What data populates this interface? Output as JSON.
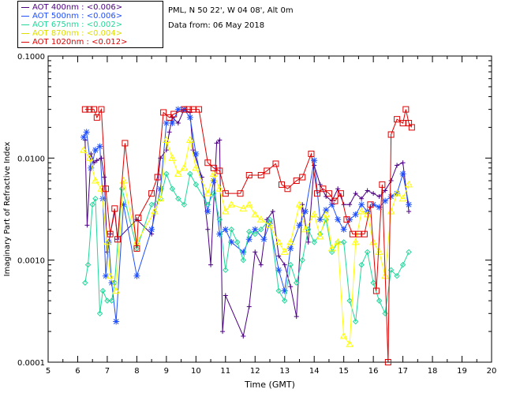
{
  "header": {
    "site": "PML, N 50 22', W 04 08', Alt 0m",
    "date": "Data from: 06 May 2018"
  },
  "colors": {
    "s400": "#4b0082",
    "s500": "#1f4fff",
    "s675": "#22d79a",
    "s870": "#ffff00",
    "s1020": "#dd0000"
  },
  "legend": [
    {
      "label": "AOT  400nm : <0.006>",
      "color": "#4b0082"
    },
    {
      "label": "AOT  500nm : <0.006>",
      "color": "#1f4fff"
    },
    {
      "label": "AOT  675nm : <0.002>",
      "color": "#22d79a"
    },
    {
      "label": "AOT  870nm : <0.004>",
      "color": "#dddd00"
    },
    {
      "label": "AOT 1020nm : <0.012>",
      "color": "#dd0000"
    }
  ],
  "chart_data": {
    "type": "scatter",
    "title": "",
    "xlabel": "Time (GMT)",
    "ylabel": "Imaginary Part of Refractive Index",
    "xlim": [
      5,
      20
    ],
    "ylim": [
      0.0001,
      0.1
    ],
    "yscale": "log",
    "xticks": [
      5,
      6,
      7,
      8,
      9,
      10,
      11,
      12,
      13,
      14,
      15,
      16,
      17,
      18,
      19,
      20
    ],
    "yticks": [
      {
        "value": 0.0001,
        "label": "0.0001"
      },
      {
        "value": 0.001,
        "label": "0.0010"
      },
      {
        "value": 0.01,
        "label": "0.0100"
      },
      {
        "value": 0.1,
        "label": "0.1000"
      }
    ],
    "series": [
      {
        "name": "AOT 400nm",
        "marker": "plus",
        "color": "#4b0082",
        "points": [
          [
            6.25,
            0.015
          ],
          [
            6.32,
            0.0022
          ],
          [
            6.45,
            0.011
          ],
          [
            6.55,
            0.009
          ],
          [
            6.65,
            0.0095
          ],
          [
            6.8,
            0.01
          ],
          [
            6.9,
            0.0065
          ],
          [
            7.0,
            0.0012
          ],
          [
            7.1,
            0.0018
          ],
          [
            7.25,
            0.003
          ],
          [
            7.35,
            0.0016
          ],
          [
            8.0,
            0.0025
          ],
          [
            8.5,
            0.0018
          ],
          [
            8.8,
            0.01
          ],
          [
            9.0,
            0.012
          ],
          [
            9.1,
            0.018
          ],
          [
            9.2,
            0.025
          ],
          [
            9.4,
            0.022
          ],
          [
            9.6,
            0.03
          ],
          [
            9.8,
            0.028
          ],
          [
            9.9,
            0.012
          ],
          [
            10.2,
            0.0065
          ],
          [
            10.4,
            0.002
          ],
          [
            10.5,
            0.0009
          ],
          [
            10.7,
            0.014
          ],
          [
            10.8,
            0.015
          ],
          [
            10.9,
            0.0002
          ],
          [
            11.0,
            0.00045
          ],
          [
            11.6,
            0.00018
          ],
          [
            11.8,
            0.00035
          ],
          [
            12.0,
            0.0012
          ],
          [
            12.2,
            0.0009
          ],
          [
            12.4,
            0.0025
          ],
          [
            12.6,
            0.003
          ],
          [
            12.8,
            0.0011
          ],
          [
            13.0,
            0.0009
          ],
          [
            13.2,
            0.00055
          ],
          [
            13.4,
            0.00028
          ],
          [
            13.6,
            0.0035
          ],
          [
            13.8,
            0.0015
          ],
          [
            14.0,
            0.0085
          ],
          [
            14.2,
            0.0055
          ],
          [
            14.4,
            0.0042
          ],
          [
            14.6,
            0.0038
          ],
          [
            14.8,
            0.005
          ],
          [
            15.0,
            0.0035
          ],
          [
            15.2,
            0.0035
          ],
          [
            15.4,
            0.0045
          ],
          [
            15.6,
            0.004
          ],
          [
            15.8,
            0.0048
          ],
          [
            16.0,
            0.0045
          ],
          [
            16.2,
            0.0042
          ],
          [
            16.4,
            0.0048
          ],
          [
            16.6,
            0.006
          ],
          [
            16.8,
            0.0085
          ],
          [
            17.0,
            0.009
          ],
          [
            17.2,
            0.003
          ]
        ]
      },
      {
        "name": "AOT 500nm",
        "marker": "star",
        "color": "#1f4fff",
        "points": [
          [
            6.2,
            0.016
          ],
          [
            6.3,
            0.018
          ],
          [
            6.45,
            0.008
          ],
          [
            6.6,
            0.012
          ],
          [
            6.75,
            0.013
          ],
          [
            6.85,
            0.004
          ],
          [
            6.95,
            0.0007
          ],
          [
            7.05,
            0.0015
          ],
          [
            7.15,
            0.0006
          ],
          [
            7.3,
            0.00025
          ],
          [
            7.55,
            0.0035
          ],
          [
            8.0,
            0.0007
          ],
          [
            8.5,
            0.002
          ],
          [
            8.8,
            0.005
          ],
          [
            9.0,
            0.022
          ],
          [
            9.2,
            0.022
          ],
          [
            9.4,
            0.03
          ],
          [
            9.6,
            0.03
          ],
          [
            9.8,
            0.025
          ],
          [
            10.0,
            0.011
          ],
          [
            10.4,
            0.003
          ],
          [
            10.6,
            0.006
          ],
          [
            10.8,
            0.0018
          ],
          [
            11.0,
            0.002
          ],
          [
            11.2,
            0.0015
          ],
          [
            11.6,
            0.0012
          ],
          [
            11.8,
            0.0016
          ],
          [
            12.0,
            0.002
          ],
          [
            12.3,
            0.0016
          ],
          [
            12.5,
            0.0023
          ],
          [
            12.8,
            0.0008
          ],
          [
            13.0,
            0.0005
          ],
          [
            13.2,
            0.0013
          ],
          [
            13.5,
            0.0022
          ],
          [
            13.7,
            0.003
          ],
          [
            14.0,
            0.0095
          ],
          [
            14.2,
            0.0025
          ],
          [
            14.4,
            0.0031
          ],
          [
            14.6,
            0.0035
          ],
          [
            14.8,
            0.0025
          ],
          [
            15.0,
            0.002
          ],
          [
            15.2,
            0.0025
          ],
          [
            15.4,
            0.0028
          ],
          [
            15.6,
            0.0035
          ],
          [
            15.8,
            0.003
          ],
          [
            16.0,
            0.0035
          ],
          [
            16.2,
            0.0033
          ],
          [
            16.4,
            0.0038
          ],
          [
            16.6,
            0.0042
          ],
          [
            16.8,
            0.0045
          ],
          [
            17.0,
            0.007
          ],
          [
            17.2,
            0.0035
          ]
        ]
      },
      {
        "name": "AOT 675nm",
        "marker": "diamond",
        "color": "#22d79a",
        "points": [
          [
            6.25,
            0.0006
          ],
          [
            6.35,
            0.0009
          ],
          [
            6.5,
            0.0035
          ],
          [
            6.6,
            0.004
          ],
          [
            6.75,
            0.0003
          ],
          [
            6.85,
            0.0005
          ],
          [
            7.0,
            0.0004
          ],
          [
            7.15,
            0.0004
          ],
          [
            7.25,
            0.0006
          ],
          [
            7.5,
            0.005
          ],
          [
            8.0,
            0.0013
          ],
          [
            8.5,
            0.0035
          ],
          [
            8.8,
            0.004
          ],
          [
            9.0,
            0.007
          ],
          [
            9.2,
            0.005
          ],
          [
            9.4,
            0.004
          ],
          [
            9.6,
            0.0035
          ],
          [
            9.8,
            0.007
          ],
          [
            10.0,
            0.0055
          ],
          [
            10.4,
            0.0035
          ],
          [
            10.6,
            0.0045
          ],
          [
            10.8,
            0.0025
          ],
          [
            11.0,
            0.0008
          ],
          [
            11.2,
            0.002
          ],
          [
            11.4,
            0.0015
          ],
          [
            11.6,
            0.001
          ],
          [
            11.8,
            0.0019
          ],
          [
            12.0,
            0.0018
          ],
          [
            12.2,
            0.002
          ],
          [
            12.5,
            0.0025
          ],
          [
            12.8,
            0.0005
          ],
          [
            13.0,
            0.0004
          ],
          [
            13.2,
            0.0009
          ],
          [
            13.4,
            0.0006
          ],
          [
            13.6,
            0.001
          ],
          [
            13.8,
            0.002
          ],
          [
            14.0,
            0.0015
          ],
          [
            14.2,
            0.0018
          ],
          [
            14.4,
            0.0025
          ],
          [
            14.6,
            0.0012
          ],
          [
            14.8,
            0.0015
          ],
          [
            15.0,
            0.0015
          ],
          [
            15.2,
            0.0004
          ],
          [
            15.4,
            0.00025
          ],
          [
            15.6,
            0.0009
          ],
          [
            15.8,
            0.0012
          ],
          [
            16.0,
            0.0006
          ],
          [
            16.2,
            0.0004
          ],
          [
            16.4,
            0.0003
          ],
          [
            16.6,
            0.0008
          ],
          [
            16.8,
            0.0007
          ],
          [
            17.0,
            0.0009
          ],
          [
            17.2,
            0.0012
          ]
        ]
      },
      {
        "name": "AOT 870nm",
        "marker": "triangle",
        "color": "#ffff00",
        "points": [
          [
            6.2,
            0.012
          ],
          [
            6.4,
            0.01
          ],
          [
            6.6,
            0.006
          ],
          [
            6.8,
            0.005
          ],
          [
            7.0,
            0.0015
          ],
          [
            7.1,
            0.0007
          ],
          [
            7.3,
            0.0005
          ],
          [
            7.55,
            0.006
          ],
          [
            8.0,
            0.0015
          ],
          [
            8.6,
            0.003
          ],
          [
            8.8,
            0.004
          ],
          [
            9.0,
            0.015
          ],
          [
            9.2,
            0.01
          ],
          [
            9.4,
            0.007
          ],
          [
            9.6,
            0.008
          ],
          [
            9.8,
            0.015
          ],
          [
            10.0,
            0.008
          ],
          [
            10.4,
            0.0045
          ],
          [
            10.6,
            0.007
          ],
          [
            10.8,
            0.005
          ],
          [
            11.0,
            0.003
          ],
          [
            11.2,
            0.0035
          ],
          [
            11.6,
            0.0032
          ],
          [
            11.8,
            0.0035
          ],
          [
            12.0,
            0.0028
          ],
          [
            12.2,
            0.0025
          ],
          [
            12.5,
            0.0022
          ],
          [
            12.8,
            0.0015
          ],
          [
            13.0,
            0.0012
          ],
          [
            13.2,
            0.0015
          ],
          [
            13.5,
            0.0035
          ],
          [
            13.7,
            0.002
          ],
          [
            14.0,
            0.0028
          ],
          [
            14.2,
            0.0017
          ],
          [
            14.4,
            0.0028
          ],
          [
            14.6,
            0.0013
          ],
          [
            14.8,
            0.0015
          ],
          [
            15.0,
            0.00018
          ],
          [
            15.2,
            0.00015
          ],
          [
            15.4,
            0.0015
          ],
          [
            15.6,
            0.003
          ],
          [
            15.8,
            0.0028
          ],
          [
            16.0,
            0.0015
          ],
          [
            16.2,
            0.0012
          ],
          [
            16.4,
            0.0007
          ],
          [
            16.6,
            0.003
          ],
          [
            16.8,
            0.0045
          ],
          [
            17.0,
            0.004
          ],
          [
            17.2,
            0.0055
          ]
        ]
      },
      {
        "name": "AOT 1020nm",
        "marker": "square",
        "color": "#dd0000",
        "points": [
          [
            6.25,
            0.03
          ],
          [
            6.4,
            0.03
          ],
          [
            6.55,
            0.03
          ],
          [
            6.65,
            0.025
          ],
          [
            6.8,
            0.03
          ],
          [
            6.95,
            0.005
          ],
          [
            7.1,
            0.0018
          ],
          [
            7.25,
            0.0032
          ],
          [
            7.35,
            0.0016
          ],
          [
            7.6,
            0.014
          ],
          [
            8.0,
            0.0013
          ],
          [
            8.05,
            0.0026
          ],
          [
            8.5,
            0.0045
          ],
          [
            8.7,
            0.0065
          ],
          [
            8.9,
            0.028
          ],
          [
            9.1,
            0.025
          ],
          [
            9.25,
            0.027
          ],
          [
            9.6,
            0.03
          ],
          [
            9.75,
            0.03
          ],
          [
            9.9,
            0.03
          ],
          [
            10.1,
            0.03
          ],
          [
            10.4,
            0.009
          ],
          [
            10.6,
            0.008
          ],
          [
            10.8,
            0.0075
          ],
          [
            11.0,
            0.0045
          ],
          [
            11.5,
            0.0045
          ],
          [
            11.8,
            0.0068
          ],
          [
            12.2,
            0.0068
          ],
          [
            12.4,
            0.0075
          ],
          [
            12.7,
            0.0088
          ],
          [
            12.9,
            0.0055
          ],
          [
            13.1,
            0.005
          ],
          [
            13.4,
            0.006
          ],
          [
            13.6,
            0.0065
          ],
          [
            13.9,
            0.011
          ],
          [
            14.1,
            0.0045
          ],
          [
            14.3,
            0.005
          ],
          [
            14.5,
            0.0045
          ],
          [
            14.7,
            0.0038
          ],
          [
            14.9,
            0.0045
          ],
          [
            15.1,
            0.0025
          ],
          [
            15.3,
            0.0018
          ],
          [
            15.5,
            0.0018
          ],
          [
            15.7,
            0.0018
          ],
          [
            15.9,
            0.0035
          ],
          [
            16.1,
            0.0005
          ],
          [
            16.3,
            0.0055
          ],
          [
            16.5,
            0.0001
          ],
          [
            16.6,
            0.017
          ],
          [
            16.8,
            0.024
          ],
          [
            17.0,
            0.022
          ],
          [
            17.1,
            0.03
          ],
          [
            17.2,
            0.022
          ],
          [
            17.3,
            0.02
          ]
        ]
      }
    ]
  }
}
